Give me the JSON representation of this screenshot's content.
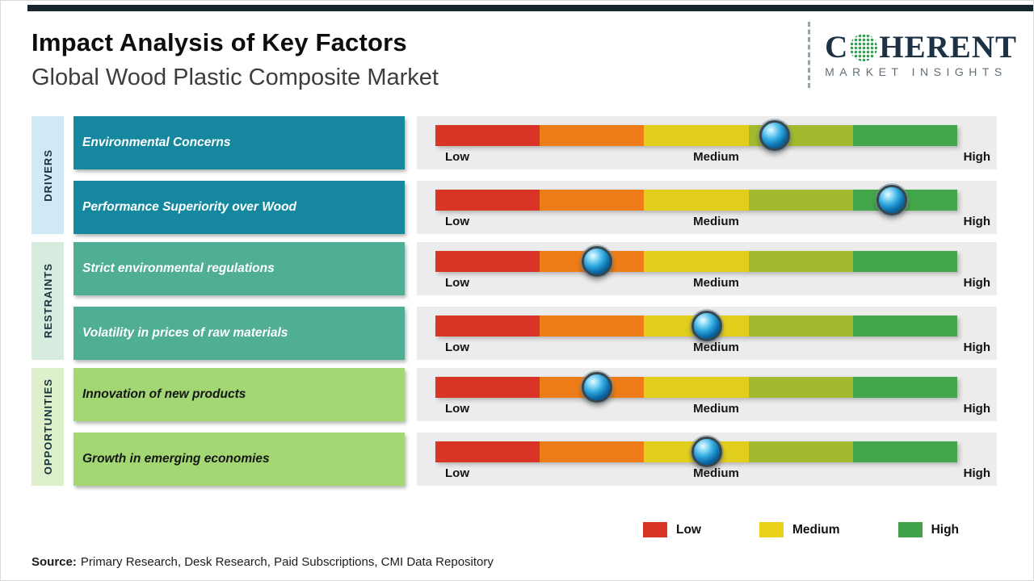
{
  "page": {
    "title": "Impact Analysis of Key Factors",
    "subtitle": "Global Wood Plastic Composite Market"
  },
  "logo": {
    "name_start": "C",
    "name_end": "HERENT",
    "tagline": "MARKET INSIGHTS"
  },
  "categories": [
    {
      "label": "DRIVERS"
    },
    {
      "label": "RESTRAINTS"
    },
    {
      "label": "OPPORTUNITIES"
    }
  ],
  "rows": [
    {
      "label": "Environmental Concerns",
      "category": "DRIVERS",
      "position": 0.65
    },
    {
      "label": "Performance Superiority over Wood",
      "category": "DRIVERS",
      "position": 0.875
    },
    {
      "label": "Strict environmental regulations",
      "category": "RESTRAINTS",
      "position": 0.31
    },
    {
      "label": "Volatility in prices of raw materials",
      "category": "RESTRAINTS",
      "position": 0.52
    },
    {
      "label": "Innovation of new products",
      "category": "OPPORTUNITIES",
      "position": 0.31
    },
    {
      "label": "Growth in emerging economies",
      "category": "OPPORTUNITIES",
      "position": 0.52
    }
  ],
  "scale": {
    "low": "Low",
    "medium": "Medium",
    "high": "High"
  },
  "bar_colors": [
    "#d93425",
    "#ee7d17",
    "#e2cf1d",
    "#a2ba2e",
    "#43a64a"
  ],
  "colors": {
    "drivers_strip": "#cfe9f6",
    "restraints_strip": "#d5ecdf",
    "opportunities_strip": "#ddf0cb",
    "drivers_box": "#15889f",
    "restraints_box": "#4fae94",
    "opportunities_box": "#a2d774",
    "panel_bg": "#ececec",
    "top_bar": "#16262c",
    "logo_navy": "#1c3144",
    "logo_green": "#2f9e4f"
  },
  "legend": [
    {
      "label": "Low",
      "color": "#d93425"
    },
    {
      "label": "Medium",
      "color": "#e8d117"
    },
    {
      "label": "High",
      "color": "#3fa24b"
    }
  ],
  "source": {
    "label": "Source:",
    "text": "Primary Research, Desk Research, Paid Subscriptions, CMI Data Repository"
  },
  "chart_data": {
    "type": "bar",
    "title": "Impact Analysis of Key Factors",
    "subtitle": "Global Wood Plastic Composite Market",
    "axis_scale": [
      "Low",
      "Medium",
      "High"
    ],
    "note": "Marker positions normalized 0 to 1 along Low-to-High impact axis",
    "series": [
      {
        "group": "Drivers",
        "name": "Environmental Concerns",
        "impact": 0.65
      },
      {
        "group": "Drivers",
        "name": "Performance Superiority over Wood",
        "impact": 0.875
      },
      {
        "group": "Restraints",
        "name": "Strict environmental regulations",
        "impact": 0.31
      },
      {
        "group": "Restraints",
        "name": "Volatility in prices of raw materials",
        "impact": 0.52
      },
      {
        "group": "Opportunities",
        "name": "Innovation of new products",
        "impact": 0.31
      },
      {
        "group": "Opportunities",
        "name": "Growth in emerging economies",
        "impact": 0.52
      }
    ],
    "legend": [
      "Low",
      "Medium",
      "High"
    ],
    "legend_position": "bottom-right",
    "grid": false
  }
}
